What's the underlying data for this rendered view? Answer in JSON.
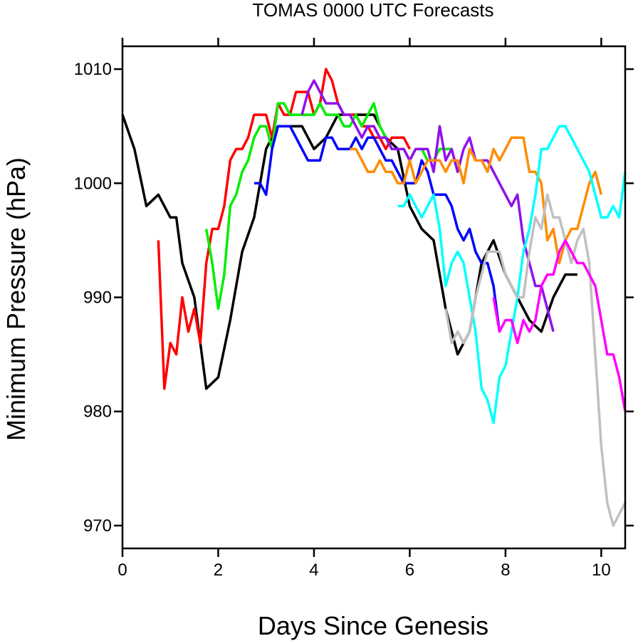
{
  "chart_data": {
    "type": "line",
    "title": "TOMAS 0000 UTC Forecasts",
    "xlabel": "Days Since Genesis",
    "ylabel": "Minimum Pressure (hPa)",
    "xlim": [
      0,
      10.5
    ],
    "ylim": [
      968,
      1012
    ],
    "x_ticks": [
      0,
      2,
      4,
      6,
      8,
      10
    ],
    "y_ticks": [
      970,
      980,
      990,
      1000,
      1010
    ],
    "series": [
      {
        "name": "black",
        "color": "#000000",
        "x": [
          0,
          0.25,
          0.5,
          0.75,
          1.0,
          1.125,
          1.25,
          1.5,
          1.75,
          2.0,
          2.25,
          2.5,
          2.75,
          3.0,
          3.25,
          3.5,
          3.75,
          4.0,
          4.25,
          4.5,
          4.75,
          5.0,
          5.25,
          5.5,
          5.75,
          6.0,
          6.25,
          6.5,
          6.75,
          7.0,
          7.25,
          7.5,
          7.75,
          8.0,
          8.25,
          8.5,
          8.75,
          9.0,
          9.25,
          9.5
        ],
        "values": [
          1006,
          1003,
          998,
          999,
          997,
          997,
          993,
          990,
          982,
          983,
          988,
          994,
          997,
          1003,
          1005,
          1005,
          1005,
          1003,
          1004,
          1006,
          1006,
          1006,
          1006,
          1004,
          1003,
          998,
          996,
          995,
          989,
          985,
          987,
          993,
          995,
          992,
          990,
          988,
          987,
          990,
          992,
          992
        ]
      },
      {
        "name": "red",
        "color": "#ff0000",
        "x": [
          0.75,
          0.875,
          1.0,
          1.125,
          1.25,
          1.375,
          1.5,
          1.625,
          1.75,
          1.875,
          2.0,
          2.125,
          2.25,
          2.375,
          2.5,
          2.625,
          2.75,
          2.875,
          3.0,
          3.125,
          3.25,
          3.375,
          3.5,
          3.625,
          3.75,
          3.875,
          4.0,
          4.125,
          4.25,
          4.375,
          4.5,
          4.625,
          4.75,
          4.875,
          5.0,
          5.125,
          5.25,
          5.375,
          5.5,
          5.625,
          5.75,
          5.875,
          6.0
        ],
        "values": [
          995,
          982,
          986,
          985,
          990,
          987,
          989,
          986,
          993,
          996,
          996,
          998,
          1002,
          1003,
          1003,
          1004,
          1006,
          1006,
          1006,
          1004,
          1007,
          1006,
          1006,
          1008,
          1008,
          1008,
          1006,
          1007,
          1010,
          1009,
          1007,
          1006,
          1006,
          1006,
          1005,
          1005,
          1004,
          1004,
          1003,
          1004,
          1004,
          1004,
          1003
        ]
      },
      {
        "name": "green",
        "color": "#00ee00",
        "x": [
          1.75,
          1.875,
          2.0,
          2.125,
          2.25,
          2.375,
          2.5,
          2.625,
          2.75,
          2.875,
          3.0,
          3.125,
          3.25,
          3.375,
          3.5,
          3.625,
          3.75,
          3.875,
          4.0,
          4.125,
          4.25,
          4.375,
          4.5,
          4.625,
          4.75,
          4.875,
          5.0,
          5.125,
          5.25,
          5.375,
          5.5,
          5.625,
          5.75,
          5.875,
          6.0,
          6.125,
          6.25,
          6.375,
          6.5,
          6.625,
          6.75,
          6.875,
          7.0
        ],
        "values": [
          996,
          993,
          989,
          992,
          998,
          999,
          1001,
          1002,
          1004,
          1005,
          1005,
          1003,
          1007,
          1007,
          1006,
          1006,
          1006,
          1006,
          1006,
          1007,
          1006,
          1006,
          1006,
          1005,
          1005,
          1006,
          1005,
          1006,
          1007,
          1005,
          1004,
          1003,
          1003,
          1003,
          1002,
          1003,
          1003,
          1002,
          1002,
          1003,
          1003,
          1003,
          1001
        ]
      },
      {
        "name": "blue",
        "color": "#0000ff",
        "x": [
          2.75,
          2.875,
          3.0,
          3.125,
          3.25,
          3.375,
          3.5,
          3.625,
          3.75,
          3.875,
          4.0,
          4.125,
          4.25,
          4.375,
          4.5,
          4.625,
          4.75,
          4.875,
          5.0,
          5.125,
          5.25,
          5.375,
          5.5,
          5.625,
          5.75,
          5.875,
          6.0,
          6.125,
          6.25,
          6.375,
          6.5,
          6.625,
          6.75,
          6.875,
          7.0,
          7.125,
          7.25,
          7.375,
          7.5,
          7.625,
          7.75,
          7.875
        ],
        "values": [
          1000,
          1000,
          999,
          1003,
          1005,
          1005,
          1005,
          1004,
          1003,
          1002,
          1002,
          1002,
          1004,
          1004,
          1003,
          1003,
          1003,
          1004,
          1003,
          1004,
          1004,
          1003,
          1002,
          1002,
          1001,
          1000,
          1000,
          1000,
          1002,
          1001,
          999,
          999,
          999,
          998,
          996,
          995,
          996,
          994,
          993,
          993,
          991,
          987
        ]
      },
      {
        "name": "purple",
        "color": "#9010ee",
        "x": [
          3.75,
          3.875,
          4.0,
          4.125,
          4.25,
          4.375,
          4.5,
          4.625,
          4.75,
          4.875,
          5.0,
          5.125,
          5.25,
          5.375,
          5.5,
          5.625,
          5.75,
          5.875,
          6.0,
          6.125,
          6.25,
          6.375,
          6.5,
          6.625,
          6.75,
          6.875,
          7.0,
          7.125,
          7.25,
          7.375,
          7.5,
          7.625,
          7.75,
          7.875,
          8.0,
          8.125,
          8.25,
          8.375,
          8.5,
          8.625,
          8.75,
          8.875,
          9.0
        ],
        "values": [
          1006,
          1008,
          1009,
          1008,
          1007,
          1007,
          1007,
          1006,
          1006,
          1005,
          1004,
          1005,
          1005,
          1004,
          1004,
          1003,
          1003,
          1003,
          1002,
          1003,
          1003,
          1003,
          1001,
          1005,
          1002,
          1003,
          1001,
          1003,
          1004,
          1002,
          1002,
          1002,
          1001,
          1000,
          999,
          998,
          999,
          995,
          993,
          991,
          991,
          989,
          987
        ]
      },
      {
        "name": "orange",
        "color": "#ff8c00",
        "x": [
          4.75,
          4.875,
          5.0,
          5.125,
          5.25,
          5.375,
          5.5,
          5.625,
          5.75,
          5.875,
          6.0,
          6.125,
          6.25,
          6.375,
          6.5,
          6.625,
          6.75,
          6.875,
          7.0,
          7.125,
          7.25,
          7.375,
          7.5,
          7.625,
          7.75,
          7.875,
          8.0,
          8.125,
          8.25,
          8.375,
          8.5,
          8.625,
          8.75,
          8.875,
          9.0,
          9.125,
          9.25,
          9.375,
          9.5,
          9.625,
          9.75,
          9.875,
          10.0
        ],
        "values": [
          1003,
          1003,
          1002,
          1001,
          1001,
          1002,
          1001,
          1001,
          1000,
          1000,
          1002,
          1000,
          1001,
          1002,
          1002,
          1002,
          1001,
          1002,
          1002,
          1000,
          1003,
          1002,
          1002,
          1001,
          1003,
          1002,
          1003,
          1004,
          1004,
          1004,
          1001,
          1001,
          1000,
          995,
          996,
          993,
          995,
          996,
          996,
          998,
          1000,
          1001,
          999
        ]
      },
      {
        "name": "cyan",
        "color": "#00ffff",
        "x": [
          5.75,
          5.875,
          6.0,
          6.125,
          6.25,
          6.375,
          6.5,
          6.625,
          6.75,
          6.875,
          7.0,
          7.125,
          7.25,
          7.375,
          7.5,
          7.625,
          7.75,
          7.875,
          8.0,
          8.125,
          8.25,
          8.375,
          8.5,
          8.625,
          8.75,
          8.875,
          9.0,
          9.125,
          9.25,
          9.375,
          9.5,
          9.625,
          9.75,
          9.875,
          10.0,
          10.125,
          10.25,
          10.375,
          10.5
        ],
        "values": [
          998,
          998,
          999,
          998,
          997,
          998,
          999,
          996,
          991,
          993,
          994,
          993,
          990,
          987,
          982,
          981,
          979,
          983,
          984,
          987,
          990,
          994,
          996,
          999,
          1003,
          1003,
          1004,
          1005,
          1005,
          1004,
          1003,
          1002,
          1001,
          999,
          997,
          997,
          998,
          997,
          1001
        ]
      },
      {
        "name": "gray",
        "color": "#c0c0c0",
        "x": [
          6.75,
          6.875,
          7.0,
          7.125,
          7.25,
          7.375,
          7.5,
          7.625,
          7.75,
          7.875,
          8.0,
          8.125,
          8.25,
          8.375,
          8.5,
          8.625,
          8.75,
          8.875,
          9.0,
          9.125,
          9.25,
          9.375,
          9.5,
          9.625,
          9.75,
          9.875,
          10.0,
          10.125,
          10.25,
          10.375,
          10.5
        ],
        "values": [
          989,
          986,
          987,
          986,
          987,
          990,
          992,
          994,
          994,
          994,
          992,
          991,
          990,
          990,
          994,
          997,
          996,
          999,
          997,
          997,
          995,
          993,
          995,
          996,
          993,
          985,
          977,
          972,
          970,
          971,
          972
        ]
      },
      {
        "name": "magenta",
        "color": "#ff00ff",
        "x": [
          7.75,
          7.875,
          8.0,
          8.125,
          8.25,
          8.375,
          8.5,
          8.625,
          8.75,
          8.875,
          9.0,
          9.125,
          9.25,
          9.375,
          9.5,
          9.625,
          9.75,
          9.875,
          10.0,
          10.125,
          10.25,
          10.375,
          10.5
        ],
        "values": [
          990,
          987,
          988,
          988,
          986,
          988,
          987,
          988,
          991,
          992,
          992,
          994,
          995,
          994,
          993,
          993,
          992,
          991,
          988,
          985,
          985,
          983,
          980
        ]
      }
    ]
  }
}
